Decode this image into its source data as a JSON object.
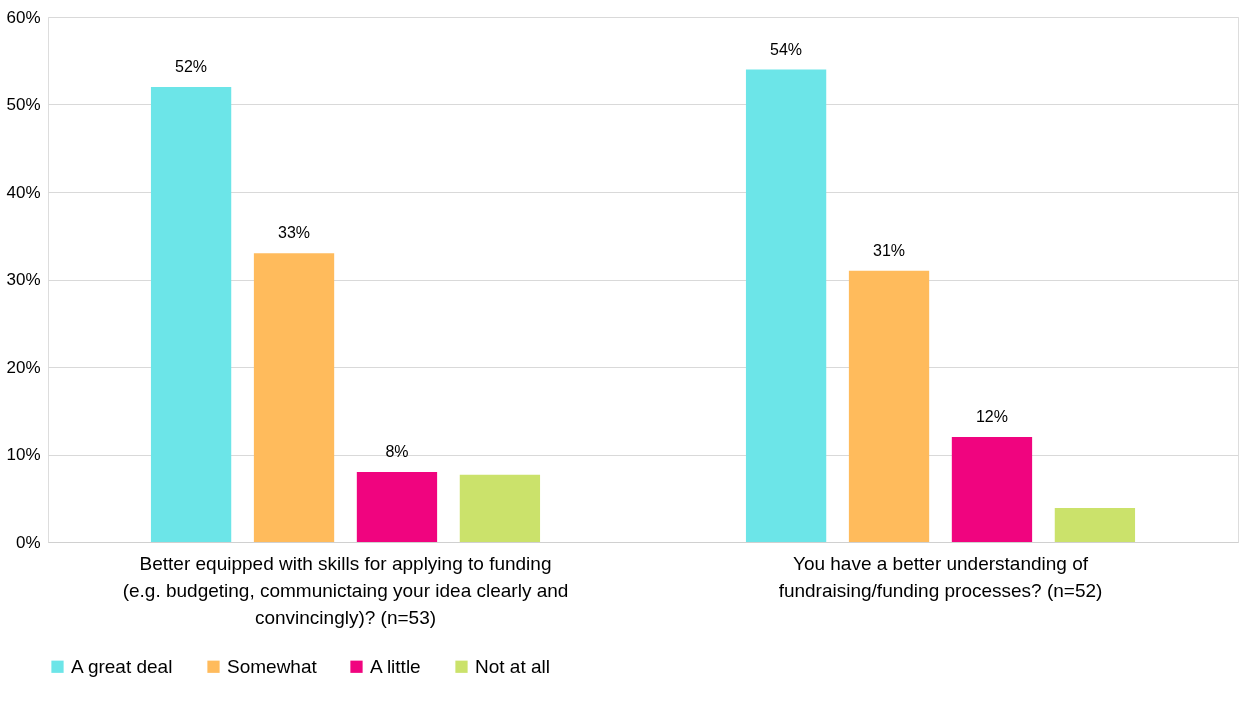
{
  "chart_data": {
    "type": "bar",
    "categories": [
      "Better equipped with skills for applying to funding (e.g. budgeting, communictaing your idea clearly and convincingly)? (n=53)",
      "You have a better understanding of fundraising/funding processes? (n=52)"
    ],
    "series": [
      {
        "name": "A great deal",
        "color": "#6ce5e8",
        "values": [
          52,
          54
        ],
        "value_labels": [
          "52%",
          "54%"
        ]
      },
      {
        "name": "Somewhat",
        "color": "#ffbb5c",
        "values": [
          33,
          31
        ],
        "value_labels": [
          "33%",
          "31%"
        ]
      },
      {
        "name": "A little",
        "color": "#f0047f",
        "values": [
          8,
          12
        ],
        "value_labels": [
          "8%",
          "12%"
        ]
      },
      {
        "name": "Not at all",
        "color": "#cbe26b",
        "values": [
          7.7,
          3.9
        ],
        "value_labels": [
          null,
          null
        ]
      }
    ],
    "ylim": [
      0,
      60
    ],
    "yticks": [
      {
        "value": 0,
        "label": "0%"
      },
      {
        "value": 10,
        "label": "10%"
      },
      {
        "value": 20,
        "label": "20%"
      },
      {
        "value": 30,
        "label": "30%"
      },
      {
        "value": 40,
        "label": "40%"
      },
      {
        "value": 50,
        "label": "50%"
      },
      {
        "value": 60,
        "label": "60%"
      }
    ],
    "grid": "y",
    "legend": "bottom"
  }
}
